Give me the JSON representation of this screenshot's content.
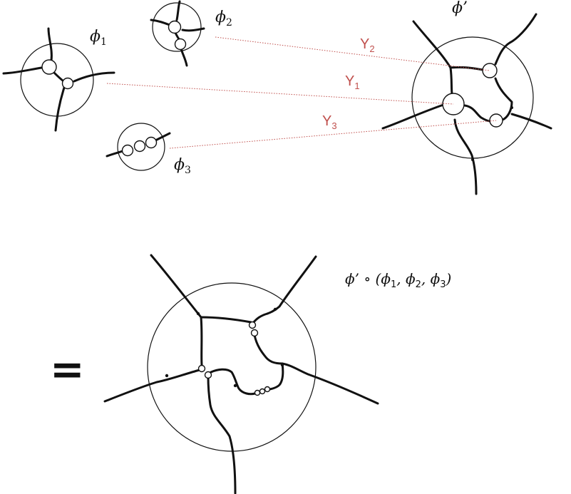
{
  "labels": {
    "phi1": "ϕ",
    "phi1_sub": "1",
    "phi2": "ϕ",
    "phi2_sub": "2",
    "phi3": "ϕ",
    "phi3_sub": "3",
    "phi_prime": "ϕ’",
    "y1": "Y",
    "y1_sub": "1",
    "y2": "Y",
    "y2_sub": "2",
    "y3": "Y",
    "y3_sub": "3",
    "equals": "=",
    "comp_prefix": "ϕ’ ∘ (ϕ",
    "comp_sub1": "1",
    "comp_sep1": ", ϕ",
    "comp_sub2": "2",
    "comp_sep2": ", ϕ",
    "comp_sub3": "3",
    "comp_close": ")"
  },
  "colors": {
    "ink": "#111111",
    "link": "#c0504d"
  }
}
